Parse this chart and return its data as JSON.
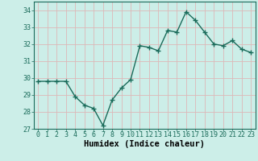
{
  "x": [
    0,
    1,
    2,
    3,
    4,
    5,
    6,
    7,
    8,
    9,
    10,
    11,
    12,
    13,
    14,
    15,
    16,
    17,
    18,
    19,
    20,
    21,
    22,
    23
  ],
  "y": [
    29.8,
    29.8,
    29.8,
    29.8,
    28.9,
    28.4,
    28.2,
    27.2,
    28.7,
    29.4,
    29.9,
    31.9,
    31.8,
    31.6,
    32.8,
    32.7,
    33.9,
    33.4,
    32.7,
    32.0,
    31.9,
    32.2,
    31.7,
    31.5
  ],
  "xlabel": "Humidex (Indice chaleur)",
  "ylim": [
    27,
    34.5
  ],
  "xlim": [
    -0.5,
    23.5
  ],
  "yticks": [
    27,
    28,
    29,
    30,
    31,
    32,
    33,
    34
  ],
  "xticks": [
    0,
    1,
    2,
    3,
    4,
    5,
    6,
    7,
    8,
    9,
    10,
    11,
    12,
    13,
    14,
    15,
    16,
    17,
    18,
    19,
    20,
    21,
    22,
    23
  ],
  "xtick_labels": [
    "0",
    "1",
    "2",
    "3",
    "4",
    "5",
    "6",
    "7",
    "8",
    "9",
    "10",
    "11",
    "12",
    "13",
    "14",
    "15",
    "16",
    "17",
    "18",
    "19",
    "20",
    "21",
    "22",
    "23"
  ],
  "line_color": "#1a6b5a",
  "marker": "+",
  "marker_size": 4,
  "bg_color": "#cceee8",
  "grid_color": "#ddb8b8",
  "line_width": 1.0,
  "xlabel_fontsize": 7.5,
  "tick_fontsize": 6.0
}
